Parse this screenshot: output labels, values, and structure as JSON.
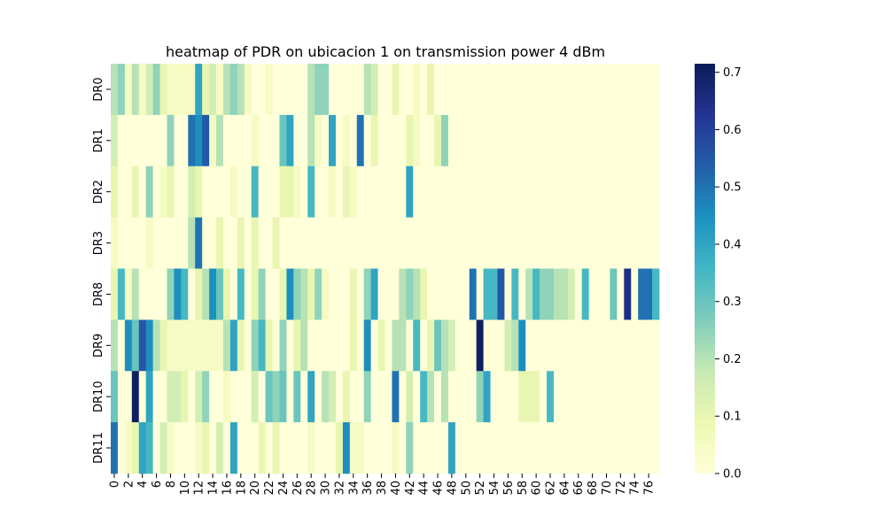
{
  "chart_data": {
    "type": "heatmap",
    "title": "heatmap of PDR on ubicacion 1 on transmission power 4 dBm",
    "xlabel": "",
    "ylabel": "",
    "rows": [
      "DR0",
      "DR1",
      "DR2",
      "DR3",
      "DR8",
      "DR9",
      "DR10",
      "DR11"
    ],
    "x_ticks": [
      "0",
      "2",
      "4",
      "6",
      "8",
      "10",
      "12",
      "14",
      "16",
      "18",
      "20",
      "22",
      "24",
      "26",
      "28",
      "30",
      "32",
      "34",
      "36",
      "38",
      "40",
      "42",
      "44",
      "46",
      "48",
      "50",
      "52",
      "54",
      "56",
      "58",
      "60",
      "62",
      "64",
      "66",
      "68",
      "70",
      "72",
      "74",
      "76"
    ],
    "num_columns": 78,
    "colormap": "YlGnBu",
    "vmin": 0.0,
    "vmax": 0.715,
    "colorbar_ticks": [
      "0.0",
      "0.1",
      "0.2",
      "0.3",
      "0.4",
      "0.5",
      "0.6",
      "0.7"
    ],
    "values": [
      [
        0.2,
        0.25,
        0.05,
        0.2,
        0.05,
        0.15,
        0.25,
        0.1,
        0.05,
        0.05,
        0.05,
        0.05,
        0.4,
        0.1,
        0.15,
        0.05,
        0.2,
        0.25,
        0.2,
        0.05,
        0.0,
        0.0,
        0.05,
        0.0,
        0.0,
        0.0,
        0.0,
        0.0,
        0.2,
        0.25,
        0.25,
        0.0,
        0.0,
        0.0,
        0.0,
        0.0,
        0.2,
        0.15,
        0.0,
        0.0,
        0.1,
        0.0,
        0.0,
        0.05,
        0.0,
        0.1,
        0.0,
        0.0,
        0.0,
        0.0,
        0.0,
        0.0,
        0.0,
        0.0,
        0.0,
        0.0,
        0.0,
        0.0,
        0.0,
        0.0,
        0.0,
        0.0,
        0.0,
        0.0,
        0.0,
        0.0,
        0.0,
        0.0,
        0.0,
        0.0,
        0.0,
        0.0,
        0.0,
        0.0,
        0.0,
        0.0,
        0.0,
        0.0
      ],
      [
        0.15,
        0.0,
        0.0,
        0.0,
        0.0,
        0.0,
        0.0,
        0.0,
        0.25,
        0.0,
        0.0,
        0.5,
        0.45,
        0.55,
        0.05,
        0.2,
        0.0,
        0.0,
        0.0,
        0.0,
        0.05,
        0.0,
        0.0,
        0.0,
        0.3,
        0.4,
        0.0,
        0.0,
        0.2,
        0.05,
        0.0,
        0.4,
        0.0,
        0.05,
        0.0,
        0.5,
        0.0,
        0.1,
        0.0,
        0.0,
        0.0,
        0.0,
        0.1,
        0.05,
        0.0,
        0.0,
        0.1,
        0.25,
        0.0,
        0.0,
        0.0,
        0.0,
        0.0,
        0.0,
        0.0,
        0.0,
        0.0,
        0.0,
        0.0,
        0.0,
        0.0,
        0.0,
        0.0,
        0.0,
        0.0,
        0.0,
        0.0,
        0.0,
        0.0,
        0.0,
        0.0,
        0.0,
        0.0,
        0.0,
        0.0,
        0.0,
        0.0,
        0.0
      ],
      [
        0.1,
        0.0,
        0.0,
        0.1,
        0.0,
        0.25,
        0.0,
        0.05,
        0.1,
        0.0,
        0.0,
        0.15,
        0.1,
        0.0,
        0.0,
        0.0,
        0.0,
        0.05,
        0.0,
        0.0,
        0.35,
        0.0,
        0.0,
        0.0,
        0.1,
        0.1,
        0.05,
        0.0,
        0.35,
        0.0,
        0.0,
        0.05,
        0.0,
        0.1,
        0.05,
        0.0,
        0.0,
        0.0,
        0.0,
        0.0,
        0.0,
        0.0,
        0.4,
        0.0,
        0.0,
        0.0,
        0.0,
        0.0,
        0.0,
        0.0,
        0.0,
        0.0,
        0.0,
        0.0,
        0.0,
        0.0,
        0.0,
        0.0,
        0.0,
        0.0,
        0.0,
        0.0,
        0.0,
        0.0,
        0.0,
        0.0,
        0.0,
        0.0,
        0.0,
        0.0,
        0.0,
        0.0,
        0.0,
        0.0,
        0.0,
        0.0,
        0.0,
        0.0
      ],
      [
        0.05,
        0.0,
        0.0,
        0.0,
        0.0,
        0.05,
        0.0,
        0.0,
        0.0,
        0.0,
        0.0,
        0.2,
        0.5,
        0.0,
        0.0,
        0.1,
        0.0,
        0.0,
        0.1,
        0.0,
        0.1,
        0.0,
        0.0,
        0.1,
        0.0,
        0.0,
        0.0,
        0.0,
        0.0,
        0.0,
        0.0,
        0.0,
        0.0,
        0.0,
        0.0,
        0.0,
        0.0,
        0.0,
        0.0,
        0.0,
        0.0,
        0.0,
        0.0,
        0.0,
        0.0,
        0.0,
        0.0,
        0.0,
        0.0,
        0.0,
        0.0,
        0.0,
        0.0,
        0.0,
        0.0,
        0.0,
        0.0,
        0.0,
        0.0,
        0.0,
        0.0,
        0.0,
        0.0,
        0.0,
        0.0,
        0.0,
        0.0,
        0.0,
        0.0,
        0.0,
        0.0,
        0.0,
        0.0,
        0.0,
        0.0,
        0.0,
        0.0,
        0.0
      ],
      [
        0.1,
        0.35,
        0.05,
        0.2,
        0.0,
        0.0,
        0.0,
        0.0,
        0.25,
        0.45,
        0.35,
        0.0,
        0.1,
        0.2,
        0.45,
        0.3,
        0.1,
        0.0,
        0.35,
        0.0,
        0.1,
        0.25,
        0.0,
        0.0,
        0.1,
        0.45,
        0.25,
        0.2,
        0.1,
        0.25,
        0.05,
        0.0,
        0.0,
        0.0,
        0.1,
        0.0,
        0.25,
        0.4,
        0.0,
        0.0,
        0.0,
        0.2,
        0.25,
        0.2,
        0.1,
        0.0,
        0.0,
        0.0,
        0.0,
        0.0,
        0.0,
        0.5,
        0.0,
        0.35,
        0.35,
        0.55,
        0.0,
        0.35,
        0.0,
        0.2,
        0.35,
        0.25,
        0.25,
        0.2,
        0.2,
        0.15,
        0.0,
        0.35,
        0.0,
        0.0,
        0.0,
        0.3,
        0.0,
        0.65,
        0.0,
        0.5,
        0.5,
        0.35
      ],
      [
        0.2,
        0.0,
        0.45,
        0.3,
        0.55,
        0.45,
        0.2,
        0.1,
        0.05,
        0.05,
        0.05,
        0.05,
        0.05,
        0.05,
        0.05,
        0.05,
        0.2,
        0.4,
        0.1,
        0.0,
        0.25,
        0.35,
        0.1,
        0.0,
        0.25,
        0.0,
        0.1,
        0.2,
        0.0,
        0.0,
        0.0,
        0.0,
        0.0,
        0.0,
        0.1,
        0.0,
        0.45,
        0.0,
        0.1,
        0.0,
        0.2,
        0.2,
        0.0,
        0.35,
        0.0,
        0.1,
        0.3,
        0.2,
        0.15,
        0.0,
        0.0,
        0.0,
        0.7,
        0.0,
        0.0,
        0.0,
        0.15,
        0.2,
        0.45,
        0.0,
        0.0,
        0.0,
        0.0,
        0.0,
        0.0,
        0.0,
        0.0,
        0.0,
        0.0,
        0.0,
        0.0,
        0.0,
        0.0,
        0.0,
        0.0,
        0.0,
        0.0,
        0.0
      ],
      [
        0.3,
        0.0,
        0.0,
        0.7,
        0.0,
        0.4,
        0.0,
        0.0,
        0.15,
        0.15,
        0.1,
        0.0,
        0.15,
        0.25,
        0.0,
        0.0,
        0.05,
        0.0,
        0.0,
        0.0,
        0.15,
        0.0,
        0.3,
        0.25,
        0.3,
        0.0,
        0.3,
        0.0,
        0.4,
        0.0,
        0.2,
        0.15,
        0.0,
        0.1,
        0.0,
        0.0,
        0.25,
        0.0,
        0.0,
        0.0,
        0.5,
        0.0,
        0.15,
        0.0,
        0.35,
        0.2,
        0.0,
        0.2,
        0.0,
        0.0,
        0.0,
        0.0,
        0.25,
        0.4,
        0.0,
        0.0,
        0.0,
        0.0,
        0.1,
        0.1,
        0.1,
        0.0,
        0.35,
        0.0,
        0.0,
        0.0,
        0.0,
        0.0,
        0.0,
        0.0,
        0.0,
        0.0,
        0.0,
        0.0,
        0.0,
        0.0,
        0.0,
        0.0
      ],
      [
        0.5,
        0.0,
        0.05,
        0.1,
        0.4,
        0.35,
        0.0,
        0.15,
        0.05,
        0.0,
        0.0,
        0.0,
        0.05,
        0.1,
        0.0,
        0.15,
        0.0,
        0.4,
        0.0,
        0.0,
        0.0,
        0.1,
        0.0,
        0.1,
        0.0,
        0.0,
        0.0,
        0.0,
        0.05,
        0.0,
        0.0,
        0.0,
        0.1,
        0.45,
        0.05,
        0.05,
        0.0,
        0.0,
        0.0,
        0.0,
        0.05,
        0.0,
        0.25,
        0.0,
        0.0,
        0.0,
        0.0,
        0.0,
        0.4,
        0.0,
        0.0,
        0.0,
        0.0,
        0.0,
        0.0,
        0.0,
        0.0,
        0.0,
        0.0,
        0.0,
        0.0,
        0.0,
        0.0,
        0.0,
        0.0,
        0.0,
        0.0,
        0.0,
        0.0,
        0.0,
        0.0,
        0.0,
        0.0,
        0.0,
        0.0,
        0.0,
        0.0,
        0.0
      ]
    ]
  }
}
